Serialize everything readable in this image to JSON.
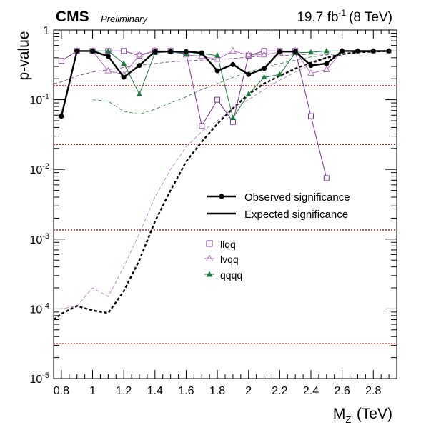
{
  "header": {
    "experiment": "CMS",
    "status": "Preliminary",
    "lumi": "19.7 fb",
    "lumi_sup": "-1",
    "energy": "(8 TeV)"
  },
  "axes": {
    "xlabel_main": "M",
    "xlabel_sub": "Z'",
    "xlabel_unit": "(TeV)",
    "ylabel": "p-value"
  },
  "legend": {
    "observed_label": "Observed significance",
    "expected_label": "Expected significance",
    "llqq_label": "llqq",
    "lvqq_label": "lvqq",
    "qqqq_label": "qqqq"
  },
  "chart_data": {
    "type": "line",
    "x_scale": "linear",
    "y_scale": "log",
    "xlim": [
      0.75,
      2.95
    ],
    "ylim": [
      1e-05,
      1
    ],
    "x_ticks": [
      0.8,
      1.0,
      1.2,
      1.4,
      1.6,
      1.8,
      2.0,
      2.2,
      2.4,
      2.6,
      2.8
    ],
    "x_tick_labels": [
      "0.8",
      "1",
      "1.2",
      "1.4",
      "1.6",
      "1.8",
      "2",
      "2.2",
      "2.4",
      "2.6",
      "2.8"
    ],
    "y_ticks": [
      1e-05,
      0.0001,
      0.001,
      0.01,
      0.1,
      1
    ],
    "y_tick_labels": [
      {
        "base": "10",
        "exp": "-5"
      },
      {
        "base": "10",
        "exp": "-4"
      },
      {
        "base": "10",
        "exp": "-3"
      },
      {
        "base": "10",
        "exp": "-2"
      },
      {
        "base": "10",
        "exp": "-1"
      },
      {
        "base": "1",
        "exp": ""
      }
    ],
    "reference_lines": [
      0.159,
      0.0228,
      0.00135,
      3.17e-05
    ],
    "colors": {
      "combined": "#000000",
      "llqq": "#7b3294",
      "lvqq": "#b06fc0",
      "qqqq": "#1b7a3e",
      "reference": "#cc0000"
    },
    "series": [
      {
        "key": "obs_combined",
        "x": [
          0.8,
          0.9,
          1.0,
          1.1,
          1.2,
          1.3,
          1.4,
          1.5,
          1.6,
          1.7,
          1.8,
          1.9,
          2.0,
          2.1,
          2.2,
          2.3,
          2.4,
          2.5,
          2.6,
          2.7,
          2.8,
          2.9
        ],
        "y": [
          0.058,
          0.5,
          0.5,
          0.42,
          0.21,
          0.31,
          0.49,
          0.49,
          0.49,
          0.47,
          0.26,
          0.32,
          0.23,
          0.28,
          0.49,
          0.49,
          0.31,
          0.33,
          0.5,
          0.5,
          0.5,
          0.5
        ]
      },
      {
        "key": "exp_combined",
        "x": [
          0.75,
          0.8,
          0.9,
          1.0,
          1.1,
          1.2,
          1.3,
          1.4,
          1.5,
          1.6,
          1.7,
          1.8,
          1.9,
          2.0,
          2.1,
          2.2,
          2.3,
          2.4,
          2.5,
          2.6,
          2.7,
          2.8,
          2.9
        ],
        "y": [
          7e-05,
          8.5e-05,
          0.00011,
          9.5e-05,
          8.7e-05,
          0.00018,
          0.0005,
          0.0018,
          0.005,
          0.013,
          0.025,
          0.045,
          0.075,
          0.12,
          0.17,
          0.22,
          0.28,
          0.34,
          0.4,
          0.45,
          0.48,
          0.49,
          0.5
        ]
      },
      {
        "key": "obs_llqq",
        "x": [
          0.8,
          0.9,
          1.0,
          1.1,
          1.2,
          1.3,
          1.4,
          1.5,
          1.6,
          1.7,
          1.8,
          1.9,
          2.0,
          2.1,
          2.2,
          2.3,
          2.4,
          2.5
        ],
        "y": [
          0.36,
          0.5,
          0.5,
          0.5,
          0.5,
          0.43,
          0.5,
          0.5,
          0.46,
          0.042,
          0.1,
          0.048,
          0.43,
          0.5,
          0.5,
          0.5,
          0.058,
          0.0075
        ]
      },
      {
        "key": "exp_llqq",
        "x": [
          0.75,
          0.8,
          0.9,
          1.0,
          1.1,
          1.2,
          1.3,
          1.4,
          1.5,
          1.6,
          1.7,
          1.8,
          1.9,
          2.0,
          2.1,
          2.2,
          2.3,
          2.4,
          2.5
        ],
        "y": [
          0.17,
          0.18,
          0.22,
          0.25,
          0.27,
          0.29,
          0.31,
          0.33,
          0.35,
          0.36,
          0.37,
          0.38,
          0.39,
          0.41,
          0.42,
          0.43,
          0.44,
          0.45,
          0.45
        ]
      },
      {
        "key": "obs_lvqq",
        "x": [
          0.8,
          0.9,
          1.0,
          1.1,
          1.2,
          1.3,
          1.4,
          1.5,
          1.6,
          1.7,
          1.8,
          1.9,
          2.0,
          2.1,
          2.2,
          2.3,
          2.4,
          2.5,
          2.6
        ],
        "y": [
          0.06,
          0.5,
          0.5,
          0.26,
          0.23,
          0.44,
          0.5,
          0.5,
          0.44,
          0.42,
          0.38,
          0.5,
          0.44,
          0.44,
          0.48,
          0.5,
          0.24,
          0.27,
          0.5
        ]
      },
      {
        "key": "exp_lvqq",
        "x": [
          0.75,
          0.8,
          0.9,
          1.0,
          1.1,
          1.2,
          1.3,
          1.4,
          1.5,
          1.6,
          1.7,
          1.8,
          1.9,
          2.0,
          2.1,
          2.2,
          2.3,
          2.4,
          2.5,
          2.6
        ],
        "y": [
          0.0001,
          0.0001,
          0.00011,
          0.0002,
          0.00015,
          0.0004,
          0.0012,
          0.004,
          0.01,
          0.021,
          0.035,
          0.05,
          0.075,
          0.1,
          0.14,
          0.19,
          0.25,
          0.32,
          0.4,
          0.47
        ]
      },
      {
        "key": "obs_qqqq",
        "x": [
          1.0,
          1.1,
          1.2,
          1.3,
          1.4,
          1.5,
          1.6,
          1.7,
          1.8,
          1.9,
          2.0,
          2.1,
          2.2,
          2.3,
          2.4,
          2.5,
          2.6,
          2.7,
          2.8,
          2.9
        ],
        "y": [
          0.5,
          0.5,
          0.33,
          0.12,
          0.47,
          0.49,
          0.45,
          0.46,
          0.43,
          0.055,
          0.12,
          0.21,
          0.23,
          0.47,
          0.48,
          0.5,
          0.5,
          0.5,
          0.5,
          0.5
        ]
      },
      {
        "key": "exp_qqqq",
        "x": [
          1.0,
          1.1,
          1.2,
          1.3,
          1.4,
          1.5,
          1.6,
          1.7,
          1.8,
          1.9,
          2.0,
          2.1,
          2.2,
          2.3,
          2.4,
          2.5,
          2.6,
          2.7,
          2.8,
          2.9
        ],
        "y": [
          0.1,
          0.095,
          0.068,
          0.062,
          0.073,
          0.09,
          0.11,
          0.14,
          0.17,
          0.21,
          0.25,
          0.29,
          0.33,
          0.37,
          0.41,
          0.44,
          0.46,
          0.48,
          0.49,
          0.5
        ]
      }
    ]
  }
}
